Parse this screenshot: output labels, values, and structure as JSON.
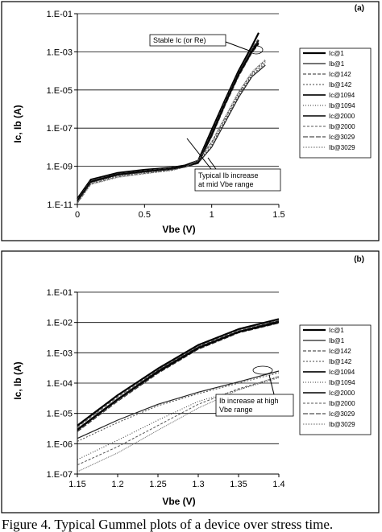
{
  "caption": "Figure 4. Typical Gummel plots of a device over stress time.",
  "chart_data": [
    {
      "type": "line",
      "panel": "(a)",
      "xlabel": "Vbe (V)",
      "ylabel": "Ic, Ib (A)",
      "xlim": [
        0,
        1.5
      ],
      "yscale": "log",
      "ylim": [
        1e-11,
        0.1
      ],
      "x_ticks": [
        "0",
        "0.5",
        "1",
        "1.5"
      ],
      "y_ticks": [
        "1.E-11",
        "1.E-09",
        "1.E-07",
        "1.E-05",
        "1.E-03",
        "1.E-01"
      ],
      "grid": "horizontal",
      "legend_position": "right",
      "series": [
        {
          "name": "Ic@1",
          "x": [
            0,
            0.1,
            0.3,
            0.5,
            0.7,
            0.8,
            0.9,
            1.0,
            1.1,
            1.2,
            1.3,
            1.35
          ],
          "y": [
            2e-11,
            2e-10,
            4.5e-10,
            6.5e-10,
            8.5e-10,
            1.1e-09,
            2e-09,
            8e-08,
            3e-06,
            0.0001,
            0.002,
            0.01
          ]
        },
        {
          "name": "Ib@1",
          "x": [
            0,
            0.1,
            0.3,
            0.5,
            0.7,
            0.8,
            0.9,
            1.0,
            1.1,
            1.2,
            1.3,
            1.4
          ],
          "y": [
            1.5e-11,
            1.5e-10,
            3.5e-10,
            5e-10,
            7e-10,
            9e-10,
            1.5e-09,
            1e-08,
            2e-07,
            4e-06,
            5e-05,
            0.0002
          ]
        },
        {
          "name": "Ic@142",
          "x": [
            0,
            0.1,
            0.3,
            0.5,
            0.7,
            0.8,
            0.9,
            1.0,
            1.1,
            1.2,
            1.3,
            1.35
          ],
          "y": [
            1.8e-11,
            1.8e-10,
            4e-10,
            6e-10,
            8e-10,
            1e-09,
            1.8e-09,
            6e-08,
            2.5e-06,
            8e-05,
            0.0015,
            0.005
          ]
        },
        {
          "name": "Ib@142",
          "x": [
            0,
            0.1,
            0.3,
            0.5,
            0.7,
            0.8,
            0.9,
            1.0,
            1.1,
            1.2,
            1.3,
            1.4
          ],
          "y": [
            1.4e-11,
            1.4e-10,
            3.2e-10,
            4.8e-10,
            6.8e-10,
            9e-10,
            1.6e-09,
            1.2e-08,
            2.5e-07,
            5e-06,
            6e-05,
            0.00025
          ]
        },
        {
          "name": "Ic@1094",
          "x": [
            0,
            0.1,
            0.3,
            0.5,
            0.7,
            0.8,
            0.9,
            1.0,
            1.1,
            1.2,
            1.3,
            1.35
          ],
          "y": [
            1.6e-11,
            1.6e-10,
            3.8e-10,
            5.5e-10,
            7.5e-10,
            1e-09,
            1.6e-09,
            5e-08,
            2e-06,
            7e-05,
            0.0012,
            0.004
          ]
        },
        {
          "name": "Ib@1094",
          "x": [
            0,
            0.1,
            0.3,
            0.5,
            0.7,
            0.8,
            0.9,
            1.0,
            1.1,
            1.2,
            1.3,
            1.4
          ],
          "y": [
            1.3e-11,
            1.3e-10,
            3e-10,
            4.5e-10,
            6.5e-10,
            9e-10,
            1.8e-09,
            1.5e-08,
            3e-07,
            6e-06,
            7e-05,
            0.0003
          ]
        },
        {
          "name": "Ic@2000",
          "x": [
            0,
            0.1,
            0.3,
            0.5,
            0.7,
            0.8,
            0.9,
            1.0,
            1.1,
            1.2,
            1.3,
            1.35
          ],
          "y": [
            1.5e-11,
            1.5e-10,
            3.6e-10,
            5.2e-10,
            7.2e-10,
            9.5e-10,
            1.5e-09,
            4e-08,
            1.8e-06,
            6e-05,
            0.001,
            0.003
          ]
        },
        {
          "name": "Ib@2000",
          "x": [
            0,
            0.1,
            0.3,
            0.5,
            0.7,
            0.8,
            0.9,
            1.0,
            1.1,
            1.2,
            1.3,
            1.4
          ],
          "y": [
            1.2e-11,
            1.2e-10,
            2.8e-10,
            4.2e-10,
            6.2e-10,
            9e-10,
            2e-09,
            1.8e-08,
            3.5e-07,
            7e-06,
            8e-05,
            0.00035
          ]
        },
        {
          "name": "Ic@3029",
          "x": [
            0,
            0.1,
            0.3,
            0.5,
            0.7,
            0.8,
            0.9,
            1.0,
            1.1,
            1.2,
            1.3,
            1.35
          ],
          "y": [
            1.4e-11,
            1.4e-10,
            3.4e-10,
            5e-10,
            7e-10,
            9e-10,
            1.4e-09,
            3.5e-08,
            1.5e-06,
            5e-05,
            0.0009,
            0.0025
          ]
        },
        {
          "name": "Ib@3029",
          "x": [
            0,
            0.1,
            0.3,
            0.5,
            0.7,
            0.8,
            0.9,
            1.0,
            1.1,
            1.2,
            1.3,
            1.4
          ],
          "y": [
            1.1e-11,
            1.1e-10,
            2.6e-10,
            4e-10,
            6e-10,
            9e-10,
            2.2e-09,
            2e-08,
            4e-07,
            8e-06,
            9e-05,
            0.0004
          ]
        }
      ],
      "annotations": [
        {
          "text": "Stable Ic (or Re)"
        },
        {
          "lines": [
            "Typical Ib increase",
            "at mid Vbe range"
          ]
        }
      ]
    },
    {
      "type": "line",
      "panel": "(b)",
      "xlabel": "Vbe (V)",
      "ylabel": "Ic, Ib (A)",
      "xlim": [
        1.15,
        1.4
      ],
      "yscale": "log",
      "ylim": [
        1e-07,
        0.1
      ],
      "x_ticks": [
        "1.15",
        "1.2",
        "1.25",
        "1.3",
        "1.35",
        "1.4"
      ],
      "y_ticks": [
        "1.E-07",
        "1.E-06",
        "1.E-05",
        "1.E-04",
        "1.E-03",
        "1.E-02",
        "1.E-01"
      ],
      "grid": "horizontal",
      "legend_position": "right",
      "series": [
        {
          "name": "Ic@1",
          "x": [
            1.15,
            1.2,
            1.25,
            1.3,
            1.35,
            1.4
          ],
          "y": [
            4e-06,
            4e-05,
            0.0003,
            0.0018,
            0.006,
            0.013
          ]
        },
        {
          "name": "Ib@1",
          "x": [
            1.15,
            1.2,
            1.25,
            1.3,
            1.35,
            1.4
          ],
          "y": [
            1.5e-06,
            6e-06,
            2e-05,
            5e-05,
            0.00011,
            0.00025
          ]
        },
        {
          "name": "Ic@142",
          "x": [
            1.15,
            1.2,
            1.25,
            1.3,
            1.35,
            1.4
          ],
          "y": [
            3.5e-06,
            3.5e-05,
            0.00027,
            0.0016,
            0.0055,
            0.012
          ]
        },
        {
          "name": "Ib@142",
          "x": [
            1.15,
            1.2,
            1.25,
            1.3,
            1.35,
            1.4
          ],
          "y": [
            1.2e-06,
            5e-06,
            1.8e-05,
            4.5e-05,
            0.0001,
            0.00022
          ]
        },
        {
          "name": "Ic@1094",
          "x": [
            1.15,
            1.2,
            1.25,
            1.3,
            1.35,
            1.4
          ],
          "y": [
            3e-06,
            3e-05,
            0.00025,
            0.0015,
            0.005,
            0.011
          ]
        },
        {
          "name": "Ib@1094",
          "x": [
            1.15,
            1.2,
            1.25,
            1.3,
            1.35,
            1.4
          ],
          "y": [
            3e-07,
            1.3e-06,
            6e-06,
            2.5e-05,
            6e-05,
            0.00015
          ]
        },
        {
          "name": "Ic@2000",
          "x": [
            1.15,
            1.2,
            1.25,
            1.3,
            1.35,
            1.4
          ],
          "y": [
            2.8e-06,
            2.8e-05,
            0.00023,
            0.0014,
            0.0048,
            0.01
          ]
        },
        {
          "name": "Ib@2000",
          "x": [
            1.15,
            1.2,
            1.25,
            1.3,
            1.35,
            1.4
          ],
          "y": [
            2e-07,
            8e-07,
            4e-06,
            2e-05,
            6.5e-05,
            0.00016
          ]
        },
        {
          "name": "Ic@3029",
          "x": [
            1.15,
            1.2,
            1.25,
            1.3,
            1.35,
            1.4
          ],
          "y": [
            2.5e-06,
            2.5e-05,
            0.00021,
            0.0013,
            0.0045,
            0.0095
          ]
        },
        {
          "name": "Ib@3029",
          "x": [
            1.15,
            1.2,
            1.25,
            1.3,
            1.35,
            1.4
          ],
          "y": [
            1.2e-07,
            5e-07,
            2.8e-06,
            1.5e-05,
            6e-05,
            0.00017
          ]
        }
      ],
      "annotations": [
        {
          "lines": [
            "Ib increase at high",
            "Vbe range"
          ]
        }
      ]
    }
  ]
}
